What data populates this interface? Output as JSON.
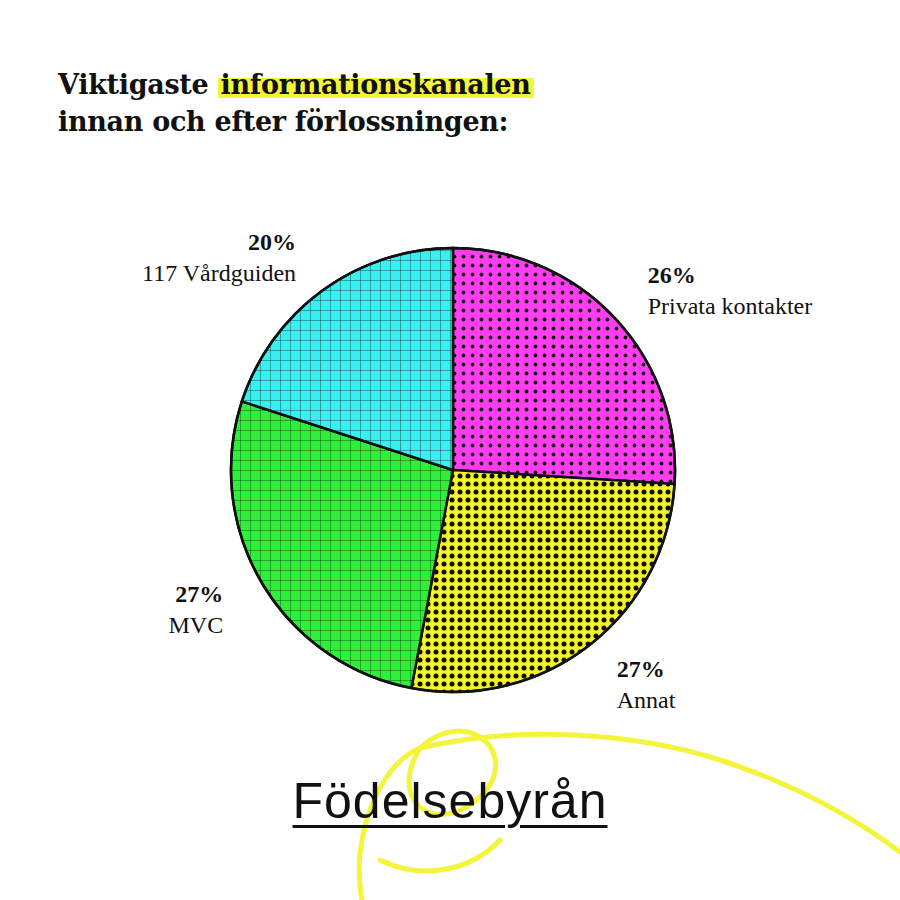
{
  "chart_data": {
    "type": "pie",
    "title": "Viktigaste informationskanalen innan och efter förlossningen:",
    "categories": [
      "Privata kontakter",
      "Annat",
      "MVC",
      "117 Vårdguiden"
    ],
    "values": [
      26,
      27,
      27,
      20
    ],
    "value_labels": [
      "26%",
      "27%",
      "27%",
      "20%"
    ],
    "colors": [
      "#ff3df0",
      "#f2f22a",
      "#2ef03a",
      "#38f0f0"
    ],
    "data_labels": true,
    "footer": "Födelsebyrån"
  }
}
